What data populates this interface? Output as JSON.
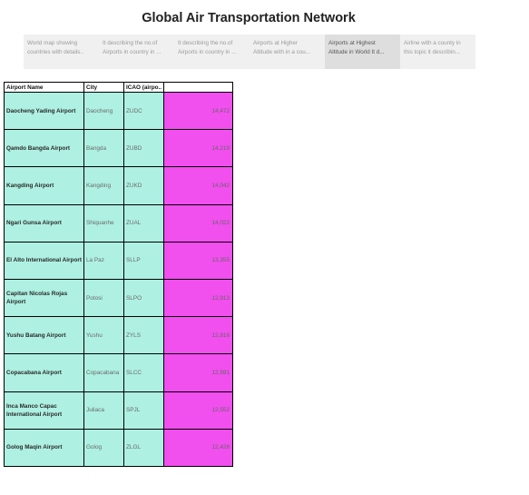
{
  "title": "Global Air Transportation Network",
  "tabs": [
    {
      "line1": "World map showing",
      "line2": "countries with details..",
      "active": false
    },
    {
      "line1": "It describing the no.of",
      "line2": "Airports in country in ...",
      "active": false
    },
    {
      "line1": "It describing the no.of",
      "line2": "Airports in country in ...",
      "active": false
    },
    {
      "line1": "Airports at Higher",
      "line2": "Altitude with in a cou...",
      "active": false
    },
    {
      "line1": "Airports at Highest",
      "line2": "Altitude in World It d...",
      "active": true
    },
    {
      "line1": "Airline with a county in",
      "line2": "this topic it describin...",
      "active": false
    }
  ],
  "table": {
    "headers": [
      "Airport Name",
      "City",
      "ICAO (airpo..",
      ""
    ],
    "rows": [
      {
        "name": "Daocheng Yading Airport",
        "city": "Daocheng",
        "icao": "ZUDC",
        "altitude": "14,472"
      },
      {
        "name": "Qamdo Bangda Airport",
        "city": "Bangda",
        "icao": "ZUBD",
        "altitude": "14,219"
      },
      {
        "name": "Kangding Airport",
        "city": "Kangding",
        "icao": "ZUKD",
        "altitude": "14,042"
      },
      {
        "name": "Ngari Gunsa Airport",
        "city": "Shiquanhe",
        "icao": "ZUAL",
        "altitude": "14,022"
      },
      {
        "name": "El Alto International Airport",
        "city": "La Paz",
        "icao": "SLLP",
        "altitude": "13,355"
      },
      {
        "name": "Capitan Nicolas Rojas Airport",
        "city": "Potosi",
        "icao": "SLPO",
        "altitude": "12,913"
      },
      {
        "name": "Yushu Batang Airport",
        "city": "Yushu",
        "icao": "ZYLS",
        "altitude": "12,816"
      },
      {
        "name": "Copacabana Airport",
        "city": "Copacabana",
        "icao": "SLCC",
        "altitude": "12,591"
      },
      {
        "name": "Inca Manco Capac International Airport",
        "city": "Juliaca",
        "icao": "SPJL",
        "altitude": "12,552"
      },
      {
        "name": "Golog Maqin Airport",
        "city": "Golog",
        "icao": "ZLGL",
        "altitude": "12,426"
      }
    ]
  },
  "colors": {
    "row_fill": "#aef0e2",
    "measure_fill": "#f14fee",
    "active_tab": "#dedede",
    "tab_strip": "#f0f0f0"
  }
}
